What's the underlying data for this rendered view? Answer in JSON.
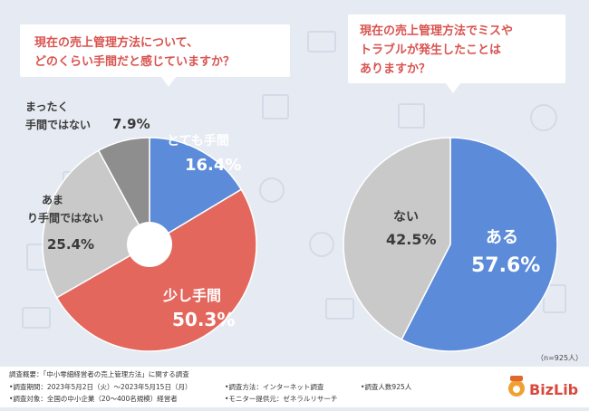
{
  "colors": {
    "background": "#e6ebf3",
    "blue": "#5b8bd9",
    "red": "#e3675c",
    "light_gray": "#c9c9c9",
    "dark_gray": "#8e8e8e",
    "title_red": "#d9534f",
    "label_dark": "#3a3a3a"
  },
  "footer": {
    "survey_title": "調査概要：「中小零細経営者の売上管理方法」に関する調査",
    "period": "•調査期間：2023年5月2日（火）〜2023年5月15日（月）",
    "method": "•調査方法：インターネット調査",
    "count": "•調査人数925人",
    "target": "•調査対象：全国の中小企業（20〜400名規模）経営者",
    "provider": "•モニター提供元：ゼネラルリサーチ",
    "logo_text": "BizLib"
  },
  "chart_data": [
    {
      "type": "pie",
      "variant": "donut",
      "title": "現在の売上管理方法について、どのくらい手間だと感じていますか？",
      "slices": [
        {
          "label": "とても手間",
          "value": 16.4,
          "display": "16.4%",
          "color": "#5b8bd9"
        },
        {
          "label": "少し手間",
          "value": 50.3,
          "display": "50.3%",
          "color": "#e3675c"
        },
        {
          "label": "あまり手間ではない",
          "value": 25.4,
          "display": "25.4%",
          "color": "#c9c9c9"
        },
        {
          "label": "まったく手間ではない",
          "value": 7.9,
          "display": "7.9%",
          "color": "#8e8e8e"
        }
      ]
    },
    {
      "type": "pie",
      "title": "現在の売上管理方法でミスやトラブルが発生したことはありますか？",
      "note": "（n=925人）",
      "slices": [
        {
          "label": "ある",
          "value": 57.6,
          "display": "57.6%",
          "color": "#5b8bd9"
        },
        {
          "label": "ない",
          "value": 42.5,
          "display": "42.5%",
          "color": "#c9c9c9"
        }
      ]
    }
  ]
}
